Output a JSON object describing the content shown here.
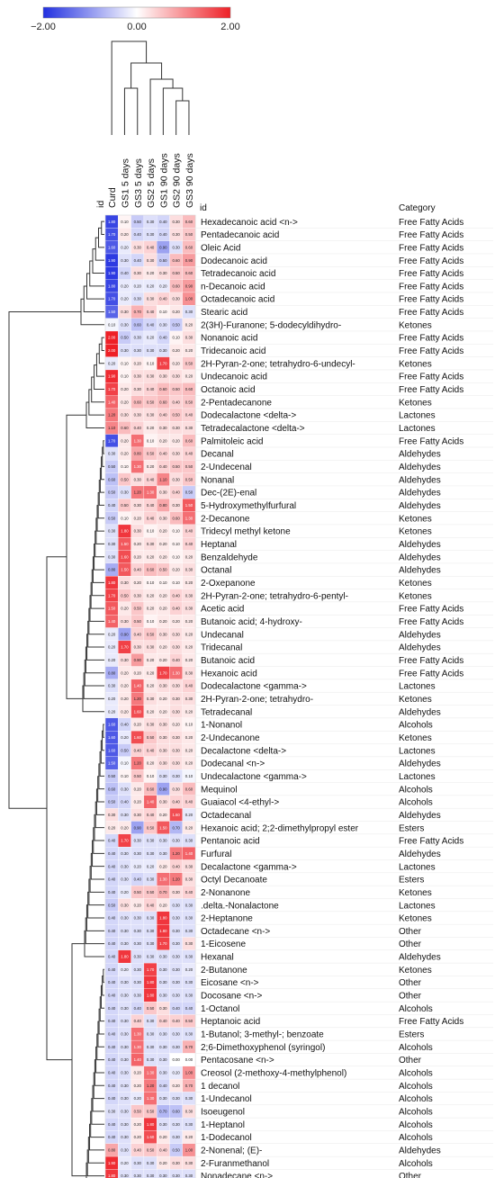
{
  "chart_data": {
    "type": "heatmap",
    "colorbar": {
      "min_label": "−2.00",
      "mid_label": "0.00",
      "max_label": "2.00",
      "range": [
        -2,
        2
      ],
      "colors": {
        "low": "#2230e0",
        "mid": "#ffffff",
        "high": "#ee2027"
      }
    },
    "id_header": "id",
    "row_id_header": "id",
    "category_header": "Category",
    "columns": [
      "Curd",
      "GS1 5 days",
      "GS3 5 days",
      "GS2 5 days",
      "GS1 90 days",
      "GS2 90 days",
      "GS3 90 days"
    ],
    "rows": [
      {
        "id": "Hexadecanoic acid <n->",
        "category": "Free Fatty Acids",
        "values": [
          -1.8,
          0.1,
          -0.5,
          -0.3,
          -0.4,
          0.3,
          0.6
        ]
      },
      {
        "id": "Pentadecanoic acid",
        "category": "Free Fatty Acids",
        "values": [
          -1.7,
          0.2,
          -0.4,
          -0.3,
          -0.4,
          0.3,
          0.5
        ]
      },
      {
        "id": "Oleic Acid",
        "category": "Free Fatty Acids",
        "values": [
          -1.6,
          -0.2,
          0.3,
          0.4,
          -0.9,
          -0.3,
          0.6
        ]
      },
      {
        "id": "Dodecanoic acid",
        "category": "Free Fatty Acids",
        "values": [
          -1.9,
          -0.3,
          -0.4,
          0.3,
          -0.5,
          0.6,
          0.9
        ]
      },
      {
        "id": "Tetradecanoic acid",
        "category": "Free Fatty Acids",
        "values": [
          -1.9,
          -0.4,
          0.3,
          0.2,
          0.3,
          0.5,
          0.6
        ]
      },
      {
        "id": "n-Decanoic acid",
        "category": "Free Fatty Acids",
        "values": [
          -1.8,
          -0.2,
          -0.2,
          -0.2,
          -0.2,
          0.6,
          0.9
        ]
      },
      {
        "id": "Octadecanoic acid",
        "category": "Free Fatty Acids",
        "values": [
          -1.7,
          -0.2,
          -0.3,
          0.3,
          0.4,
          0.3,
          1.0
        ]
      },
      {
        "id": "Stearic acid",
        "category": "Free Fatty Acids",
        "values": [
          -1.5,
          0.3,
          0.7,
          0.4,
          0.1,
          0.2,
          -0.3
        ]
      },
      {
        "id": "2(3H)-Furanone; 5-dodecyldihydro-",
        "category": "Ketones",
        "values": [
          -0.1,
          -0.3,
          -0.6,
          -0.4,
          -0.3,
          -0.5,
          0.2
        ]
      },
      {
        "id": "Nonanoic acid",
        "category": "Free Fatty Acids",
        "values": [
          2.0,
          -0.5,
          -0.3,
          -0.2,
          -0.4,
          0.1,
          0.3
        ]
      },
      {
        "id": "Tridecanoic acid",
        "category": "Free Fatty Acids",
        "values": [
          2.0,
          -0.3,
          -0.3,
          -0.3,
          -0.3,
          0.2,
          0.2
        ]
      },
      {
        "id": "2H-Pyran-2-one; tetrahydro-6-undecyl-",
        "category": "Ketones",
        "values": [
          -0.2,
          0.1,
          0.2,
          0.1,
          1.7,
          0.2,
          0.5
        ]
      },
      {
        "id": "Undecanoic acid",
        "category": "Free Fatty Acids",
        "values": [
          1.9,
          0.1,
          0.3,
          0.3,
          0.3,
          0.3,
          0.2
        ]
      },
      {
        "id": "Octanoic acid",
        "category": "Free Fatty Acids",
        "values": [
          1.7,
          0.2,
          0.3,
          0.4,
          0.6,
          0.5,
          0.6
        ]
      },
      {
        "id": "2-Pentadecanone",
        "category": "Ketones",
        "values": [
          1.4,
          0.2,
          0.6,
          0.5,
          0.6,
          0.4,
          0.5
        ]
      },
      {
        "id": "Dodecalactone <delta->",
        "category": "Lactones",
        "values": [
          1.2,
          0.3,
          0.3,
          0.3,
          0.4,
          0.5,
          0.4
        ]
      },
      {
        "id": "Tetradecalactone <delta->",
        "category": "Lactones",
        "values": [
          1.1,
          0.6,
          0.4,
          0.2,
          0.3,
          0.3,
          0.3
        ]
      },
      {
        "id": "Palmitoleic acid",
        "category": "Free Fatty Acids",
        "values": [
          -1.7,
          0.2,
          1.3,
          0.1,
          0.2,
          0.2,
          0.6
        ]
      },
      {
        "id": "Decanal",
        "category": "Aldehydes",
        "values": [
          -0.3,
          0.2,
          0.8,
          0.5,
          0.4,
          0.3,
          0.4
        ]
      },
      {
        "id": "2-Undecenal",
        "category": "Aldehydes",
        "values": [
          -0.5,
          0.1,
          1.3,
          0.2,
          0.4,
          0.5,
          0.5
        ]
      },
      {
        "id": "Nonanal",
        "category": "Aldehydes",
        "values": [
          -0.6,
          0.5,
          0.3,
          0.4,
          1.1,
          0.3,
          0.5
        ]
      },
      {
        "id": "Dec-(2E)-enal",
        "category": "Aldehydes",
        "values": [
          -0.5,
          -0.3,
          1.2,
          1.3,
          0.3,
          0.4,
          -0.5
        ]
      },
      {
        "id": "5-Hydroxymethylfurfural",
        "category": "Aldehydes",
        "values": [
          -0.4,
          0.5,
          0.3,
          0.4,
          0.8,
          0.3,
          1.5
        ]
      },
      {
        "id": "2-Decanone",
        "category": "Ketones",
        "values": [
          -0.5,
          0.1,
          0.2,
          0.4,
          0.3,
          0.6,
          1.3
        ]
      },
      {
        "id": "Tridecyl methyl ketone",
        "category": "Ketones",
        "values": [
          -0.3,
          1.8,
          0.3,
          0.1,
          0.2,
          0.1,
          0.4
        ]
      },
      {
        "id": "Heptanal",
        "category": "Aldehydes",
        "values": [
          -0.3,
          1.5,
          0.2,
          0.3,
          0.2,
          0.1,
          0.4
        ]
      },
      {
        "id": "Benzaldehyde",
        "category": "Aldehydes",
        "values": [
          -0.3,
          1.6,
          0.2,
          0.2,
          0.2,
          0.1,
          0.2
        ]
      },
      {
        "id": "Octanal",
        "category": "Aldehydes",
        "values": [
          -0.8,
          1.5,
          0.4,
          0.6,
          0.5,
          0.2,
          0.3
        ]
      },
      {
        "id": "2-Oxepanone",
        "category": "Ketones",
        "values": [
          1.8,
          0.3,
          0.2,
          0.1,
          0.1,
          0.1,
          0.2
        ]
      },
      {
        "id": "2H-Pyran-2-one; tetrahydro-6-pentyl-",
        "category": "Ketones",
        "values": [
          1.7,
          0.5,
          0.3,
          0.2,
          0.2,
          0.4,
          0.3
        ]
      },
      {
        "id": "Acetic acid",
        "category": "Free Fatty Acids",
        "values": [
          1.5,
          0.2,
          0.5,
          0.2,
          0.2,
          0.4,
          0.3
        ]
      },
      {
        "id": "Butanoic acid; 4-hydroxy-",
        "category": "Free Fatty Acids",
        "values": [
          1.4,
          0.3,
          0.5,
          0.1,
          0.2,
          0.2,
          0.2
        ]
      },
      {
        "id": "Undecanal",
        "category": "Aldehydes",
        "values": [
          -0.2,
          -0.9,
          0.4,
          0.5,
          0.3,
          0.3,
          0.2
        ]
      },
      {
        "id": "Tridecanal",
        "category": "Aldehydes",
        "values": [
          -0.2,
          1.7,
          0.3,
          0.3,
          0.2,
          0.3,
          0.2
        ]
      },
      {
        "id": "Butanoic acid",
        "category": "Free Fatty Acids",
        "values": [
          -0.2,
          0.3,
          0.9,
          0.2,
          0.2,
          0.4,
          0.2
        ]
      },
      {
        "id": "Hexanoic acid",
        "category": "Free Fatty Acids",
        "values": [
          -0.8,
          0.2,
          0.2,
          0.2,
          1.7,
          1.3,
          0.3
        ]
      },
      {
        "id": "Dodecalactone <gamma->",
        "category": "Lactones",
        "values": [
          -0.3,
          0.2,
          1.4,
          0.2,
          0.3,
          0.3,
          0.4
        ]
      },
      {
        "id": "2H-Pyran-2-one; tetrahydro-",
        "category": "Ketones",
        "values": [
          -0.2,
          0.2,
          1.2,
          0.3,
          0.2,
          0.3,
          0.3
        ]
      },
      {
        "id": "Tetradecanal",
        "category": "Aldehydes",
        "values": [
          -0.2,
          0.2,
          1.6,
          0.2,
          0.2,
          0.3,
          0.2
        ]
      },
      {
        "id": "1-Nonanol",
        "category": "Alcohols",
        "values": [
          -1.6,
          -0.4,
          0.2,
          0.3,
          0.3,
          0.2,
          0.1
        ]
      },
      {
        "id": "2-Undecanone",
        "category": "Ketones",
        "values": [
          -1.6,
          -0.2,
          1.6,
          0.5,
          0.3,
          0.3,
          0.2
        ]
      },
      {
        "id": "Decalactone <delta->",
        "category": "Lactones",
        "values": [
          -1.6,
          -0.5,
          0.4,
          0.4,
          0.3,
          0.3,
          0.2
        ]
      },
      {
        "id": "Dodecanal <n->",
        "category": "Aldehydes",
        "values": [
          -1.5,
          -0.1,
          1.2,
          0.2,
          0.3,
          0.3,
          0.2
        ]
      },
      {
        "id": "Undecalactone <gamma->",
        "category": "Lactones",
        "values": [
          -0.5,
          0.1,
          0.5,
          0.1,
          -0.3,
          -0.3,
          -0.1
        ]
      },
      {
        "id": "Mequinol",
        "category": "Alcohols",
        "values": [
          -0.6,
          -0.3,
          0.2,
          0.6,
          -0.9,
          0.3,
          0.6
        ]
      },
      {
        "id": "Guaiacol <4-ethyl->",
        "category": "Alcohols",
        "values": [
          -0.5,
          -0.4,
          0.2,
          1.4,
          0.3,
          0.4,
          0.4
        ]
      },
      {
        "id": "Octadecanal",
        "category": "Aldehydes",
        "values": [
          0.3,
          -0.3,
          0.3,
          0.4,
          0.2,
          1.6,
          -0.2
        ]
      },
      {
        "id": "Hexanoic acid; 2;2-dimethylpropyl ester",
        "category": "Esters",
        "values": [
          0.2,
          0.2,
          -0.9,
          0.5,
          1.5,
          -0.7,
          0.2
        ]
      },
      {
        "id": "Pentanoic acid",
        "category": "Free Fatty Acids",
        "values": [
          -0.4,
          1.7,
          -0.3,
          -0.3,
          -0.3,
          -0.3,
          -0.3
        ]
      },
      {
        "id": "Furfural",
        "category": "Aldehydes",
        "values": [
          -0.4,
          -0.3,
          -0.3,
          -0.3,
          -0.3,
          1.2,
          1.4
        ]
      },
      {
        "id": "Decalactone <gamma->",
        "category": "Lactones",
        "values": [
          -0.4,
          -0.3,
          -0.2,
          -0.2,
          0.2,
          0.4,
          0.3
        ]
      },
      {
        "id": "Octyl Decanoate",
        "category": "Esters",
        "values": [
          -0.4,
          -0.3,
          -0.4,
          -0.3,
          1.3,
          1.2,
          0.3
        ]
      },
      {
        "id": "2-Nonanone",
        "category": "Ketones",
        "values": [
          -0.4,
          -0.2,
          0.5,
          0.5,
          0.7,
          0.3,
          0.4
        ]
      },
      {
        "id": ".delta.-Nonalactone",
        "category": "Lactones",
        "values": [
          -0.5,
          0.3,
          0.2,
          0.4,
          0.2,
          -0.3,
          -0.3
        ]
      },
      {
        "id": "2-Heptanone",
        "category": "Ketones",
        "values": [
          -0.4,
          -0.3,
          -0.3,
          -0.3,
          1.8,
          -0.3,
          -0.3
        ]
      },
      {
        "id": "Octadecane <n->",
        "category": "Other",
        "values": [
          -0.4,
          -0.3,
          -0.3,
          -0.3,
          1.8,
          -0.3,
          -0.3
        ]
      },
      {
        "id": "1-Eicosene",
        "category": "Other",
        "values": [
          -0.4,
          -0.3,
          -0.3,
          -0.3,
          1.7,
          -0.3,
          0.3
        ]
      },
      {
        "id": "Hexanal",
        "category": "Aldehydes",
        "values": [
          -0.4,
          1.8,
          -0.3,
          -0.3,
          -0.3,
          -0.3,
          -0.3
        ]
      },
      {
        "id": "2-Butanone",
        "category": "Ketones",
        "values": [
          -0.4,
          -0.2,
          -0.3,
          1.7,
          -0.3,
          -0.3,
          -0.2
        ]
      },
      {
        "id": "Eicosane <n->",
        "category": "Other",
        "values": [
          -0.4,
          -0.3,
          -0.3,
          1.8,
          -0.3,
          -0.3,
          -0.3
        ]
      },
      {
        "id": "Docosane <n->",
        "category": "Other",
        "values": [
          -0.4,
          -0.3,
          -0.3,
          1.8,
          -0.3,
          -0.3,
          -0.3
        ]
      },
      {
        "id": "1-Octanol",
        "category": "Alcohols",
        "values": [
          -0.4,
          -0.3,
          -0.4,
          0.5,
          0.3,
          -0.4,
          -0.4
        ]
      },
      {
        "id": "Heptanoic acid",
        "category": "Free Fatty Acids",
        "values": [
          -0.4,
          -0.3,
          0.4,
          -0.3,
          0.4,
          0.4,
          0.5
        ]
      },
      {
        "id": "1-Butanol; 3-methyl-; benzoate",
        "category": "Esters",
        "values": [
          -0.4,
          -0.3,
          1.3,
          -0.3,
          -0.3,
          -0.3,
          -0.3
        ]
      },
      {
        "id": "2;6-Dimethoxyphenol (syringol)",
        "category": "Alcohols",
        "values": [
          -0.4,
          -0.3,
          1.3,
          -0.3,
          -0.3,
          -0.3,
          0.7
        ]
      },
      {
        "id": "Pentacosane <n->",
        "category": "Other",
        "values": [
          -0.4,
          -0.3,
          1.4,
          -0.3,
          -0.3,
          0.0,
          0.0
        ]
      },
      {
        "id": "Creosol (2-methoxy-4-methylphenol)",
        "category": "Alcohols",
        "values": [
          -0.4,
          -0.3,
          0.2,
          1.3,
          -0.3,
          -0.2,
          1.0
        ]
      },
      {
        "id": "1 decanol",
        "category": "Alcohols",
        "values": [
          -0.4,
          -0.3,
          0.2,
          1.2,
          -0.4,
          0.2,
          0.7
        ]
      },
      {
        "id": "1-Undecanol",
        "category": "Alcohols",
        "values": [
          -0.4,
          -0.3,
          -0.2,
          1.3,
          -0.3,
          -0.3,
          -0.3
        ]
      },
      {
        "id": "Isoeugenol",
        "category": "Alcohols",
        "values": [
          -0.3,
          -0.3,
          0.5,
          0.5,
          -0.7,
          -0.6,
          0.3
        ]
      },
      {
        "id": "1-Heptanol",
        "category": "Alcohols",
        "values": [
          -0.4,
          -0.3,
          0.2,
          1.8,
          -0.3,
          -0.3,
          -0.3
        ]
      },
      {
        "id": "1-Dodecanol",
        "category": "Alcohols",
        "values": [
          -0.4,
          -0.3,
          0.2,
          1.6,
          0.2,
          -0.3,
          0.2
        ]
      },
      {
        "id": "2-Nonenal; (E)-",
        "category": "Aldehydes",
        "values": [
          0.8,
          -0.3,
          0.4,
          0.5,
          0.4,
          -0.5,
          1.0
        ]
      },
      {
        "id": "2-Furanmethanol",
        "category": "Alcohols",
        "values": [
          1.9,
          -0.2,
          -0.3,
          -0.3,
          0.2,
          0.3,
          0.3
        ]
      },
      {
        "id": "Nonadecane <n->",
        "category": "Other",
        "values": [
          1.8,
          -0.3,
          -0.3,
          -0.3,
          -0.3,
          -0.3,
          -0.3
        ]
      }
    ]
  }
}
